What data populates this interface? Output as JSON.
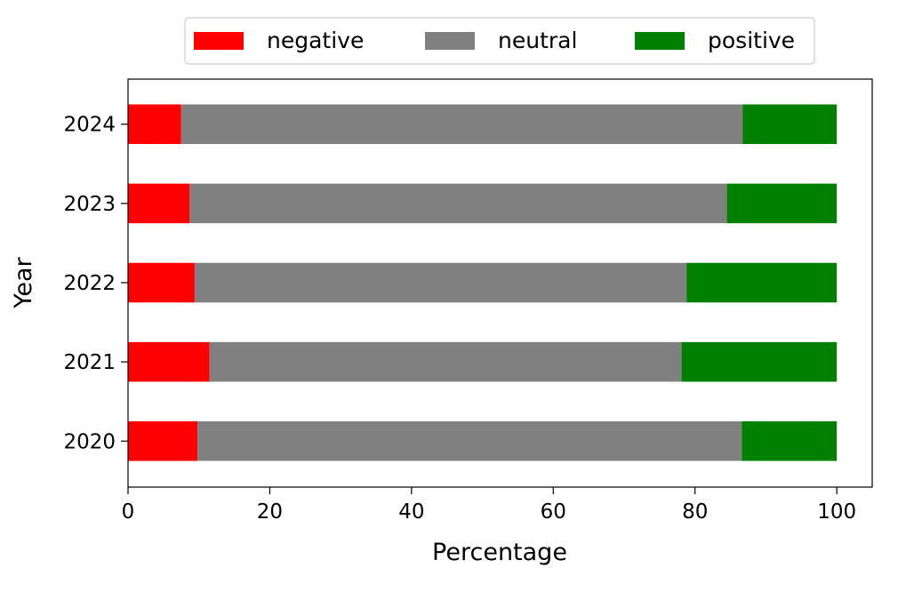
{
  "chart_data": {
    "type": "bar",
    "orientation": "horizontal",
    "stacked": true,
    "categories": [
      "2020",
      "2021",
      "2022",
      "2023",
      "2024"
    ],
    "series": [
      {
        "name": "negative",
        "color": "#ff0000",
        "values": [
          9.8,
          11.5,
          9.4,
          8.7,
          7.5
        ]
      },
      {
        "name": "neutral",
        "color": "#808080",
        "values": [
          76.8,
          66.6,
          69.4,
          75.8,
          79.2
        ]
      },
      {
        "name": "positive",
        "color": "#008000",
        "values": [
          13.4,
          21.9,
          21.2,
          15.5,
          13.3
        ]
      }
    ],
    "title": "",
    "xlabel": "Percentage",
    "ylabel": "Year",
    "xlim": [
      0,
      105
    ],
    "xticks": [
      0,
      20,
      40,
      60,
      80,
      100
    ],
    "grid": false,
    "legend_position": "top-center"
  }
}
